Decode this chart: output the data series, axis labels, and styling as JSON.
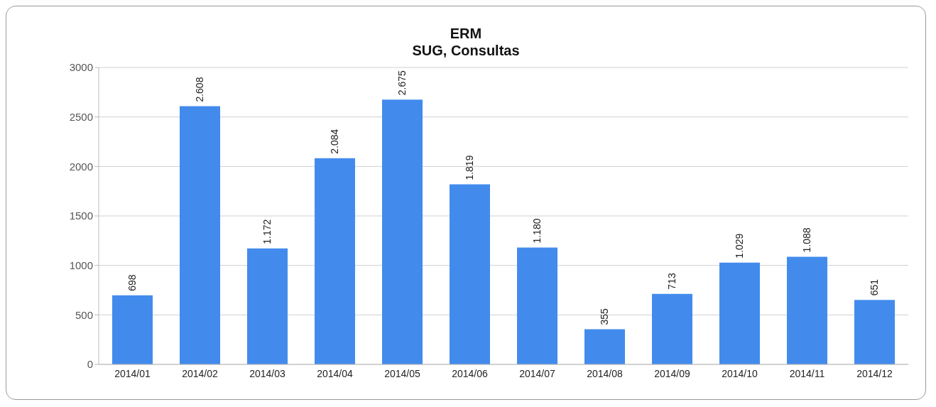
{
  "chart_data": {
    "type": "bar",
    "title": "ERM",
    "subtitle": "SUG, Consultas",
    "categories": [
      "2014/01",
      "2014/02",
      "2014/03",
      "2014/04",
      "2014/05",
      "2014/06",
      "2014/07",
      "2014/08",
      "2014/09",
      "2014/10",
      "2014/11",
      "2014/12"
    ],
    "values": [
      698,
      2608,
      1172,
      2084,
      2675,
      1819,
      1180,
      355,
      713,
      1029,
      1088,
      651
    ],
    "value_labels": [
      "698",
      "2.608",
      "1.172",
      "2.084",
      "2.675",
      "1.819",
      "1.180",
      "355",
      "713",
      "1.029",
      "1.088",
      "651"
    ],
    "color": "#428bed",
    "ylim": [
      0,
      3000
    ],
    "yticks": [
      0,
      500,
      1000,
      1500,
      2000,
      2500,
      3000
    ],
    "grid": "y"
  }
}
